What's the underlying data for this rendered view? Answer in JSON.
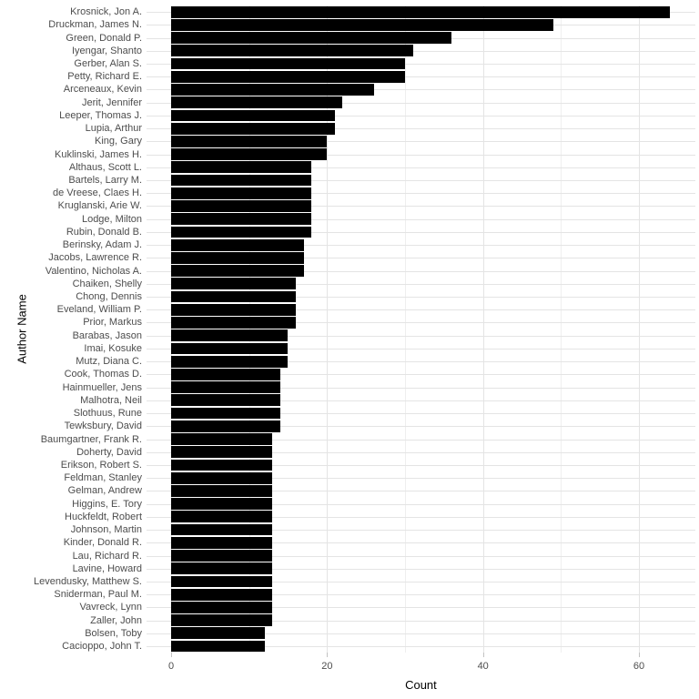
{
  "chart_data": {
    "type": "bar",
    "orientation": "horizontal",
    "title": "",
    "xlabel": "Count",
    "ylabel": "Author Name",
    "categories": [
      "Krosnick, Jon A.",
      "Druckman, James N.",
      "Green, Donald P.",
      "Iyengar, Shanto",
      "Gerber, Alan S.",
      "Petty, Richard E.",
      "Arceneaux, Kevin",
      "Jerit, Jennifer",
      "Leeper, Thomas J.",
      "Lupia, Arthur",
      "King, Gary",
      "Kuklinski, James H.",
      "Althaus, Scott L.",
      "Bartels, Larry M.",
      "de Vreese, Claes H.",
      "Kruglanski, Arie W.",
      "Lodge, Milton",
      "Rubin, Donald B.",
      "Berinsky, Adam J.",
      "Jacobs, Lawrence R.",
      "Valentino, Nicholas A.",
      "Chaiken, Shelly",
      "Chong, Dennis",
      "Eveland, William P.",
      "Prior, Markus",
      "Barabas, Jason",
      "Imai, Kosuke",
      "Mutz, Diana C.",
      "Cook, Thomas D.",
      "Hainmueller, Jens",
      "Malhotra, Neil",
      "Slothuus, Rune",
      "Tewksbury, David",
      "Baumgartner, Frank R.",
      "Doherty, David",
      "Erikson, Robert S.",
      "Feldman, Stanley",
      "Gelman, Andrew",
      "Higgins, E. Tory",
      "Huckfeldt, Robert",
      "Johnson, Martin",
      "Kinder, Donald R.",
      "Lau, Richard R.",
      "Lavine, Howard",
      "Levendusky, Matthew S.",
      "Sniderman, Paul M.",
      "Vavreck, Lynn",
      "Zaller, John",
      "Bolsen, Toby",
      "Cacioppo, John T."
    ],
    "values": [
      64,
      49,
      36,
      31,
      30,
      30,
      26,
      22,
      21,
      21,
      20,
      20,
      18,
      18,
      18,
      18,
      18,
      18,
      17,
      17,
      17,
      16,
      16,
      16,
      16,
      15,
      15,
      15,
      14,
      14,
      14,
      14,
      14,
      13,
      13,
      13,
      13,
      13,
      13,
      13,
      13,
      13,
      13,
      13,
      13,
      13,
      13,
      13,
      12,
      12
    ],
    "x_ticks": [
      0,
      20,
      40,
      60
    ],
    "x_tick_labels": [
      "0",
      "20",
      "40",
      "60"
    ],
    "x_minor_ticks": [
      10,
      30,
      50
    ],
    "xlim": [
      -3.2,
      67.2
    ],
    "bar_color": "#000000",
    "grid": true,
    "legend": "none",
    "colors": {
      "background": "#ffffff",
      "grid_major": "#e4e4e4",
      "grid_minor": "#efefef",
      "axis_text": "#4d4d4d",
      "axis_title": "#000000",
      "tick_mark": "#c2c2c2"
    }
  }
}
